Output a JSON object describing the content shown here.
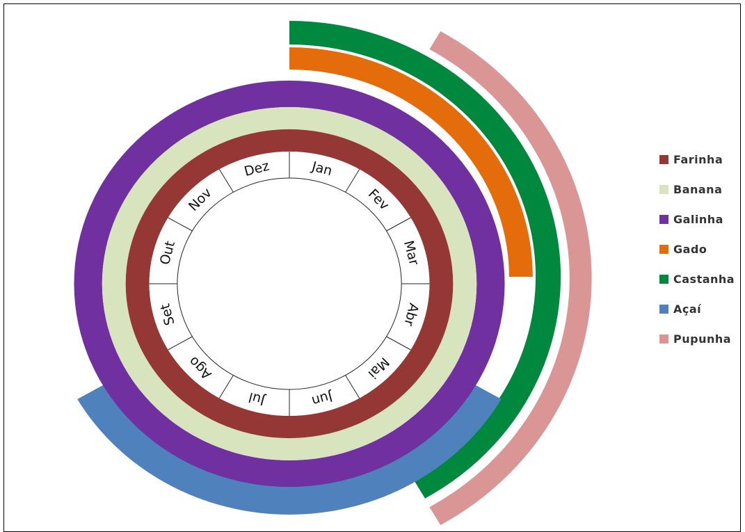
{
  "chart_data": {
    "type": "radial-calendar",
    "months": [
      "Jan",
      "Fev",
      "Mar",
      "Abr",
      "Mai",
      "Jun",
      "Jul",
      "Ago",
      "Set",
      "Out",
      "Nov",
      "Dez"
    ],
    "legend_placement": "right",
    "series": [
      {
        "name": "Farinha",
        "color": "#953735",
        "months": [
          "Jan",
          "Fev",
          "Mar",
          "Abr",
          "Mai",
          "Jun",
          "Jul",
          "Ago",
          "Set",
          "Out",
          "Nov",
          "Dez"
        ]
      },
      {
        "name": "Banana",
        "color": "#d7e4bd",
        "months": [
          "Jan",
          "Fev",
          "Mar",
          "Abr",
          "Mai",
          "Jun",
          "Jul",
          "Ago",
          "Set",
          "Out",
          "Nov",
          "Dez"
        ]
      },
      {
        "name": "Galinha",
        "color": "#7030a0",
        "months": [
          "Jan",
          "Fev",
          "Mar",
          "Abr",
          "Mai",
          "Jun",
          "Jul",
          "Ago",
          "Set",
          "Out",
          "Nov",
          "Dez"
        ]
      },
      {
        "name": "Gado",
        "color": "#e46c0a",
        "months": [
          "Jan",
          "Fev",
          "Mar"
        ]
      },
      {
        "name": "Castanha",
        "color": "#00883f",
        "months": [
          "Jan",
          "Fev",
          "Mar",
          "Abr",
          "Mai"
        ]
      },
      {
        "name": "Açaí",
        "color": "#4f81bd",
        "months": [
          "Mai",
          "Jun",
          "Jul",
          "Ago"
        ]
      },
      {
        "name": "Pupunha",
        "color": "#d99694",
        "months": [
          "Fev",
          "Mar",
          "Abr",
          "Mai"
        ]
      }
    ]
  }
}
